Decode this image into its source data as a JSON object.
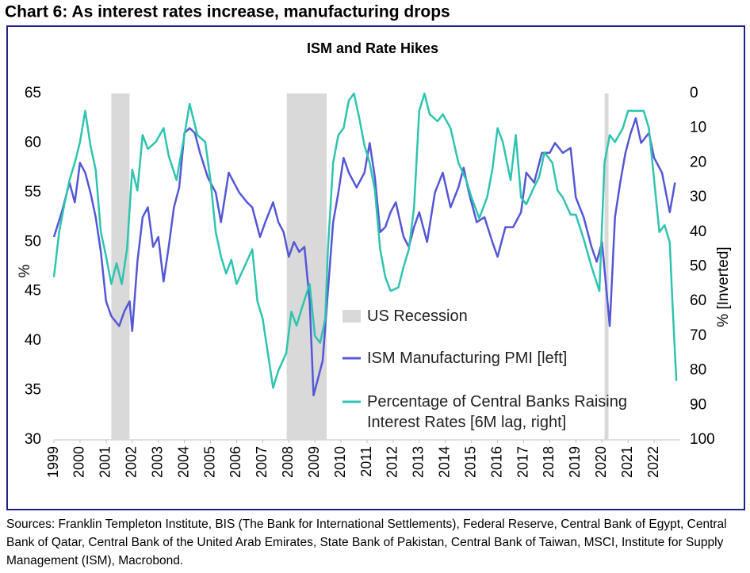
{
  "header": {
    "title": "Chart 6: As interest rates increase, manufacturing drops"
  },
  "chart_data": {
    "type": "line",
    "title": "ISM and Rate Hikes",
    "ylabel": "%",
    "y2label": "% [Inverted]",
    "xlim": [
      1999,
      2023
    ],
    "xticks": [
      1999,
      2000,
      2001,
      2002,
      2003,
      2004,
      2005,
      2006,
      2007,
      2008,
      2009,
      2010,
      2011,
      2012,
      2013,
      2014,
      2015,
      2016,
      2017,
      2018,
      2019,
      2020,
      2021,
      2022
    ],
    "ylim": [
      30,
      65
    ],
    "yticks": [
      30,
      35,
      40,
      45,
      50,
      55,
      60,
      65
    ],
    "y2lim": [
      100,
      0
    ],
    "y2ticks": [
      0,
      10,
      20,
      30,
      40,
      50,
      60,
      70,
      80,
      90,
      100
    ],
    "recession_label": "US Recession",
    "recession_color": "#d9d9d9",
    "recessions": [
      [
        2001.2,
        2001.9
      ],
      [
        2007.92,
        2009.45
      ],
      [
        2020.1,
        2020.25
      ]
    ],
    "series": [
      {
        "name": "ISM Manufacturing PMI [left]",
        "color": "#5457d6",
        "axis": "y",
        "x": [
          1999.0,
          1999.3,
          1999.6,
          1999.8,
          2000.0,
          2000.2,
          2000.4,
          2000.6,
          2000.8,
          2001.0,
          2001.2,
          2001.5,
          2001.7,
          2001.9,
          2002.0,
          2002.2,
          2002.4,
          2002.6,
          2002.8,
          2003.0,
          2003.2,
          2003.4,
          2003.6,
          2003.8,
          2004.0,
          2004.2,
          2004.4,
          2004.6,
          2004.9,
          2005.2,
          2005.4,
          2005.7,
          2005.9,
          2006.1,
          2006.4,
          2006.6,
          2006.9,
          2007.1,
          2007.4,
          2007.6,
          2007.8,
          2008.0,
          2008.2,
          2008.4,
          2008.6,
          2008.8,
          2008.95,
          2009.1,
          2009.3,
          2009.5,
          2009.7,
          2009.9,
          2010.1,
          2010.3,
          2010.6,
          2010.9,
          2011.1,
          2011.3,
          2011.5,
          2011.7,
          2011.9,
          2012.1,
          2012.4,
          2012.6,
          2012.8,
          2013.0,
          2013.3,
          2013.6,
          2013.9,
          2014.2,
          2014.5,
          2014.7,
          2014.9,
          2015.2,
          2015.5,
          2015.8,
          2016.0,
          2016.3,
          2016.6,
          2016.9,
          2017.1,
          2017.4,
          2017.7,
          2018.0,
          2018.2,
          2018.5,
          2018.8,
          2019.0,
          2019.3,
          2019.6,
          2019.8,
          2020.0,
          2020.3,
          2020.5,
          2020.7,
          2020.9,
          2021.1,
          2021.3,
          2021.5,
          2021.8,
          2022.0,
          2022.3,
          2022.6,
          2022.8
        ],
        "values": [
          50.5,
          53,
          56,
          54,
          58,
          57,
          55,
          52.5,
          49,
          44,
          42.5,
          41.5,
          43,
          44,
          41,
          48,
          52.5,
          53.5,
          49.5,
          50.5,
          46,
          49.5,
          53.5,
          55.5,
          61,
          61.5,
          61,
          59,
          56.5,
          55,
          52,
          57,
          56,
          55,
          54,
          53.5,
          50.5,
          52,
          54,
          52,
          51,
          48.5,
          50,
          49,
          49.5,
          44,
          34.5,
          36,
          38,
          45,
          52,
          55,
          58.5,
          57,
          55.5,
          57,
          60,
          56.5,
          51,
          51.5,
          53,
          54,
          50.5,
          49.5,
          51.5,
          53,
          50,
          55,
          57,
          53.5,
          55.5,
          57.5,
          55,
          52,
          52.5,
          50,
          48.5,
          51.5,
          51.5,
          53,
          57,
          56,
          59,
          59,
          60,
          59,
          59.5,
          54.5,
          52.5,
          49.5,
          48,
          50,
          41.5,
          52.5,
          56,
          59,
          61,
          62.5,
          60,
          61,
          58.5,
          57,
          53,
          56
        ]
      },
      {
        "name": "Percentage of Central Banks Raising Interest Rates [6M lag, right]",
        "color": "#2ec4b0",
        "axis": "y2",
        "x": [
          1999.0,
          1999.2,
          1999.4,
          1999.6,
          1999.8,
          2000.0,
          2000.2,
          2000.4,
          2000.6,
          2000.8,
          2001.0,
          2001.2,
          2001.4,
          2001.6,
          2001.8,
          2002.0,
          2002.2,
          2002.4,
          2002.6,
          2002.9,
          2003.2,
          2003.4,
          2003.7,
          2004.0,
          2004.2,
          2004.5,
          2004.8,
          2005.0,
          2005.2,
          2005.4,
          2005.6,
          2005.8,
          2006.0,
          2006.3,
          2006.6,
          2006.8,
          2007.0,
          2007.2,
          2007.4,
          2007.6,
          2007.9,
          2008.1,
          2008.3,
          2008.5,
          2008.8,
          2009.0,
          2009.2,
          2009.4,
          2009.5,
          2009.7,
          2009.9,
          2010.1,
          2010.3,
          2010.5,
          2010.7,
          2010.9,
          2011.1,
          2011.3,
          2011.5,
          2011.7,
          2011.9,
          2012.2,
          2012.4,
          2012.6,
          2012.8,
          2013.0,
          2013.2,
          2013.4,
          2013.7,
          2013.9,
          2014.2,
          2014.5,
          2014.8,
          2015.0,
          2015.3,
          2015.6,
          2015.8,
          2016.0,
          2016.2,
          2016.5,
          2016.7,
          2016.9,
          2017.1,
          2017.4,
          2017.6,
          2017.8,
          2018.1,
          2018.3,
          2018.5,
          2018.8,
          2019.0,
          2019.3,
          2019.6,
          2019.9,
          2020.1,
          2020.3,
          2020.5,
          2020.8,
          2021.0,
          2021.3,
          2021.6,
          2021.8,
          2022.0,
          2022.2,
          2022.4,
          2022.6,
          2022.7,
          2022.85
        ],
        "values": [
          53,
          40,
          32,
          25,
          20,
          14,
          5,
          15,
          22,
          40,
          47,
          55,
          49,
          55,
          45,
          22,
          28,
          12,
          16,
          14,
          10,
          18,
          25,
          12,
          3,
          12,
          14,
          25,
          40,
          47,
          52,
          48,
          55,
          50,
          45,
          60,
          65,
          75,
          85,
          80,
          75,
          63,
          67,
          62,
          55,
          70,
          72,
          65,
          45,
          20,
          12,
          10,
          2,
          0,
          7,
          15,
          20,
          28,
          45,
          53,
          57,
          56,
          50,
          45,
          33,
          5,
          0,
          6,
          8,
          6,
          10,
          20,
          25,
          30,
          36,
          30,
          22,
          10,
          14,
          25,
          12,
          30,
          32,
          27,
          24,
          17,
          20,
          28,
          30,
          35,
          35,
          42,
          50,
          57,
          20,
          12,
          14,
          10,
          5,
          5,
          5,
          10,
          25,
          40,
          38,
          43,
          60,
          83
        ]
      }
    ]
  },
  "sources": "Sources: Franklin Templeton Institute, BIS (The Bank for International Settlements), Federal Reserve, Central Bank of Egypt, Central Bank of Qatar, Central Bank of the United Arab Emirates, State Bank of Pakistan, Central Bank of Taiwan, MSCI, Institute for Supply Management (ISM), Macrobond."
}
